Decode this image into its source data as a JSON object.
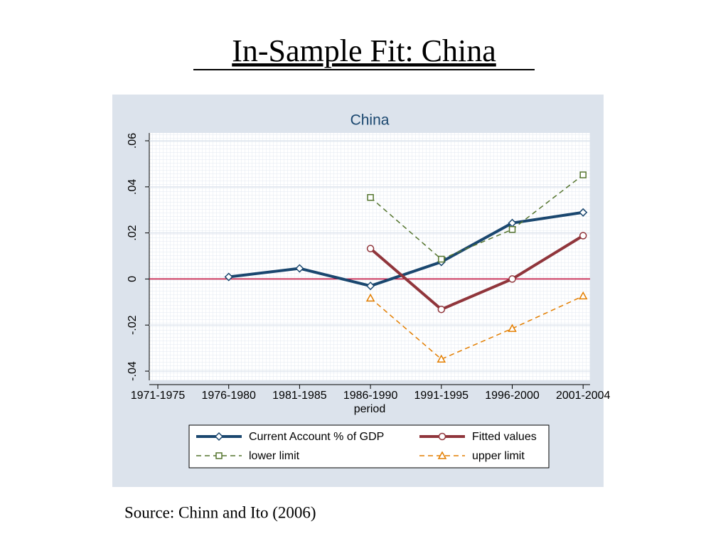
{
  "chart_data": {
    "type": "line",
    "slide_title": "In-Sample Fit: China",
    "title": "China",
    "x_label": "period",
    "source": "Source: Chinn and Ito (2006)",
    "categories": [
      "1971-1975",
      "1976-1980",
      "1981-1985",
      "1986-1990",
      "1991-1995",
      "1996-2000",
      "2001-2004"
    ],
    "series": [
      {
        "name": "Current Account % of GDP",
        "color": "#1a476f",
        "marker": "diamond",
        "dashed": false,
        "values": [
          null,
          0.0009,
          0.0046,
          -0.003,
          0.0074,
          0.0243,
          0.0289
        ]
      },
      {
        "name": "Fitted values",
        "color": "#90353b",
        "marker": "circle",
        "dashed": false,
        "values": [
          null,
          null,
          null,
          0.0132,
          -0.0132,
          0,
          0.0188
        ]
      },
      {
        "name": "lower limit",
        "color": "#55752f",
        "marker": "square",
        "dashed": true,
        "values": [
          null,
          null,
          null,
          0.0354,
          0.0086,
          0.0215,
          0.0452
        ]
      },
      {
        "name": "upper limit",
        "color": "#e37e00",
        "marker": "triangle",
        "dashed": true,
        "values": [
          null,
          null,
          null,
          -0.0083,
          -0.0348,
          -0.0215,
          -0.0074
        ]
      }
    ],
    "reference_line": 0,
    "ylim": [
      -0.044,
      0.0634
    ],
    "yticks": [
      {
        "value": -0.04,
        "label": "-.04"
      },
      {
        "value": -0.02,
        "label": "-.02"
      },
      0,
      {
        "value": 0.02,
        "label": ".02"
      },
      {
        "value": 0.04,
        "label": ".04"
      },
      {
        "value": 0.06,
        "label": ".06"
      }
    ],
    "grid": true,
    "legend": "bottom"
  }
}
